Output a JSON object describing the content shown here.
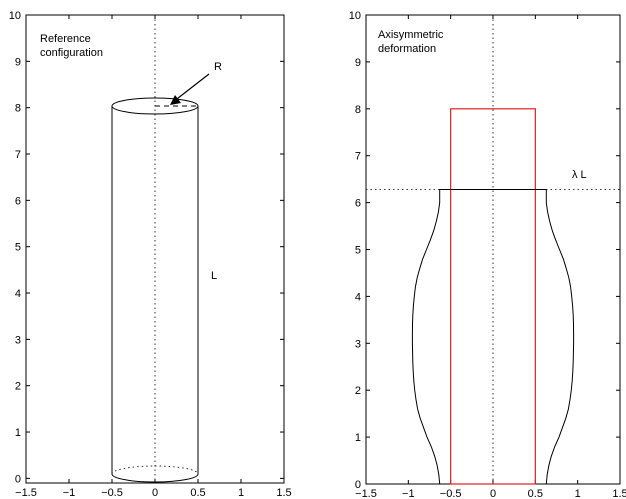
{
  "figure": {
    "panels": [
      {
        "id": "left",
        "annotation_line1": "Reference",
        "annotation_line2": "configuration",
        "radius_label": "R",
        "length_label": "L",
        "xlim": [
          -1.5,
          1.5
        ],
        "ylim": [
          -0.1,
          10
        ],
        "xticks": [
          -1.5,
          -1,
          -0.5,
          0,
          0.5,
          1,
          1.5
        ],
        "xtick_labels": [
          "−1.5",
          "−1",
          "−0.5",
          "0",
          "0.5",
          "1",
          "1.5"
        ],
        "yticks": [
          0,
          1,
          2,
          3,
          4,
          5,
          6,
          7,
          8,
          9,
          10
        ],
        "ytick_labels": [
          "0",
          "1",
          "2",
          "3",
          "4",
          "5",
          "6",
          "7",
          "8",
          "9",
          "10"
        ],
        "cylinder": {
          "radius": 0.5,
          "height": 8
        }
      },
      {
        "id": "right",
        "annotation_line1": "Axisymmetric",
        "annotation_line2": "deformation",
        "stretch_label": "λ L",
        "xlim": [
          -1.5,
          1.5
        ],
        "ylim": [
          0,
          10
        ],
        "xticks": [
          -1.5,
          -1,
          -0.5,
          0,
          0.5,
          1,
          1.5
        ],
        "xtick_labels": [
          "−1.5",
          "−1",
          "−0.5",
          "0",
          "0.5",
          "1",
          "1.5"
        ],
        "yticks": [
          0,
          1,
          2,
          3,
          4,
          5,
          6,
          7,
          8,
          9,
          10
        ],
        "ytick_labels": [
          "0",
          "1",
          "2",
          "3",
          "4",
          "5",
          "6",
          "7",
          "8",
          "9",
          "10"
        ],
        "reference_rect": {
          "x_min": -0.5,
          "x_max": 0.5,
          "y_min": 0,
          "y_max": 8
        },
        "deformed_height": 6.28,
        "deformed_profile": [
          [
            0.63,
            0
          ],
          [
            0.64,
            0.2
          ],
          [
            0.66,
            0.4
          ],
          [
            0.69,
            0.6
          ],
          [
            0.73,
            0.8
          ],
          [
            0.78,
            1.0
          ],
          [
            0.82,
            1.2
          ],
          [
            0.86,
            1.4
          ],
          [
            0.89,
            1.6
          ],
          [
            0.91,
            1.8
          ],
          [
            0.925,
            2.0
          ],
          [
            0.935,
            2.2
          ],
          [
            0.942,
            2.4
          ],
          [
            0.947,
            2.6
          ],
          [
            0.95,
            2.8
          ],
          [
            0.952,
            3.0
          ],
          [
            0.952,
            3.2
          ],
          [
            0.951,
            3.4
          ],
          [
            0.947,
            3.6
          ],
          [
            0.94,
            3.8
          ],
          [
            0.93,
            4.0
          ],
          [
            0.916,
            4.2
          ],
          [
            0.895,
            4.4
          ],
          [
            0.865,
            4.6
          ],
          [
            0.83,
            4.8
          ],
          [
            0.785,
            5.0
          ],
          [
            0.74,
            5.2
          ],
          [
            0.7,
            5.4
          ],
          [
            0.67,
            5.6
          ],
          [
            0.645,
            5.8
          ],
          [
            0.63,
            6.0
          ],
          [
            0.63,
            6.28
          ]
        ],
        "colors": {
          "reference": "#e02020",
          "deformed": "#000000"
        }
      }
    ]
  }
}
